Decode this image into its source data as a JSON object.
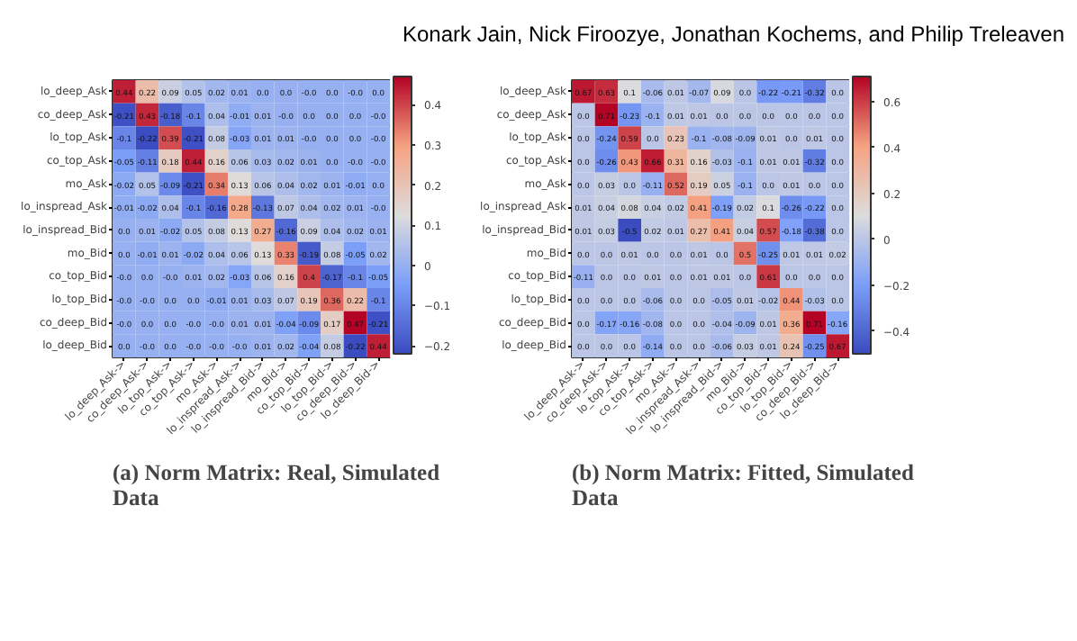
{
  "chart_data": [
    {
      "type": "heatmap",
      "title": "(a) Norm Matrix: Real, Simulated Data",
      "annotations": [
        "Konark Jain, Nick Firoozye, Jonathan Kochems, and Philip Treleaven"
      ],
      "cell_labels": [
        [
          "0.44",
          "0.22",
          "0.09",
          "0.05",
          "0.02",
          "0.01",
          "0.0",
          "0.0",
          "-0.0",
          "0.0",
          "-0.0",
          "0.0"
        ],
        [
          "-0.21",
          "0.43",
          "-0.18",
          "-0.1",
          "0.04",
          "-0.01",
          "0.01",
          "-0.0",
          "0.0",
          "0.0",
          "0.0",
          "-0.0"
        ],
        [
          "-0.1",
          "-0.22",
          "0.39",
          "-0.21",
          "0.08",
          "-0.03",
          "0.01",
          "0.01",
          "-0.0",
          "0.0",
          "0.0",
          "-0.0"
        ],
        [
          "-0.05",
          "-0.11",
          "0.18",
          "0.44",
          "0.16",
          "0.06",
          "0.03",
          "0.02",
          "0.01",
          "0.0",
          "-0.0",
          "-0.0"
        ],
        [
          "-0.02",
          "0.05",
          "-0.09",
          "-0.21",
          "0.34",
          "0.13",
          "0.06",
          "0.04",
          "0.02",
          "0.01",
          "-0.01",
          "0.0"
        ],
        [
          "-0.01",
          "-0.02",
          "0.04",
          "-0.1",
          "-0.16",
          "0.28",
          "-0.13",
          "0.07",
          "0.04",
          "0.02",
          "0.01",
          "-0.0"
        ],
        [
          "0.0",
          "0.01",
          "-0.02",
          "0.05",
          "0.08",
          "0.13",
          "0.27",
          "-0.16",
          "0.09",
          "0.04",
          "0.02",
          "0.01"
        ],
        [
          "0.0",
          "-0.01",
          "0.01",
          "-0.02",
          "0.04",
          "0.06",
          "0.13",
          "0.33",
          "-0.19",
          "0.08",
          "-0.05",
          "0.02"
        ],
        [
          "-0.0",
          "0.0",
          "-0.0",
          "0.01",
          "0.02",
          "-0.03",
          "0.06",
          "0.16",
          "0.4",
          "-0.17",
          "-0.1",
          "-0.05"
        ],
        [
          "-0.0",
          "-0.0",
          "0.0",
          "0.0",
          "-0.01",
          "0.01",
          "0.03",
          "0.07",
          "0.19",
          "0.36",
          "0.22",
          "-0.1"
        ],
        [
          "-0.0",
          "0.0",
          "0.0",
          "-0.0",
          "-0.0",
          "0.01",
          "0.01",
          "-0.04",
          "-0.09",
          "0.17",
          "0.47",
          "-0.21"
        ],
        [
          "0.0",
          "-0.0",
          "0.0",
          "-0.0",
          "-0.0",
          "-0.0",
          "0.01",
          "0.02",
          "-0.04",
          "0.08",
          "-0.22",
          "0.44"
        ]
      ],
      "categories": [
        "lo_deep_Ask->",
        "co_deep_Ask->",
        "lo_top_Ask->",
        "co_top_Ask->",
        "mo_Ask->",
        "lo_inspread_Ask->",
        "lo_inspread_Bid->",
        "mo_Bid->",
        "co_top_Bid->",
        "lo_top_Bid->",
        "co_deep_Bid->",
        "lo_deep_Bid->"
      ],
      "y_categories": [
        "lo_deep_Ask",
        "co_deep_Ask",
        "lo_top_Ask",
        "co_top_Ask",
        "mo_Ask",
        "lo_inspread_Ask",
        "lo_inspread_Bid",
        "mo_Bid",
        "co_top_Bid",
        "lo_top_Bid",
        "co_deep_Bid",
        "lo_deep_Bid"
      ],
      "cells": [
        [
          0.44,
          0.22,
          0.09,
          0.05,
          0.02,
          0.01,
          0.0,
          0.0,
          -0.0,
          0.0,
          -0.0,
          0.0
        ],
        [
          -0.21,
          0.43,
          -0.18,
          -0.1,
          0.04,
          -0.01,
          0.01,
          -0.0,
          0.0,
          0.0,
          0.0,
          -0.0
        ],
        [
          -0.1,
          -0.22,
          0.39,
          -0.21,
          0.08,
          -0.03,
          0.01,
          0.01,
          -0.0,
          0.0,
          0.0,
          -0.0
        ],
        [
          -0.05,
          -0.11,
          0.18,
          0.44,
          0.16,
          0.06,
          0.03,
          0.02,
          0.01,
          0.0,
          -0.0,
          -0.0
        ],
        [
          -0.02,
          0.05,
          -0.09,
          -0.21,
          0.34,
          0.13,
          0.06,
          0.04,
          0.02,
          0.01,
          -0.01,
          0.0
        ],
        [
          -0.01,
          -0.02,
          0.04,
          -0.1,
          -0.16,
          0.28,
          -0.13,
          0.07,
          0.04,
          0.02,
          0.01,
          -0.0
        ],
        [
          0.0,
          0.01,
          -0.02,
          0.05,
          0.08,
          0.13,
          0.27,
          -0.16,
          0.09,
          0.04,
          0.02,
          0.01
        ],
        [
          0.0,
          -0.01,
          0.01,
          -0.02,
          0.04,
          0.06,
          0.13,
          0.33,
          -0.19,
          0.08,
          -0.05,
          0.02
        ],
        [
          -0.0,
          0.0,
          -0.0,
          0.01,
          0.02,
          -0.03,
          0.06,
          0.16,
          0.4,
          -0.17,
          -0.1,
          -0.05
        ],
        [
          -0.0,
          -0.0,
          0.0,
          0.0,
          -0.01,
          0.01,
          0.03,
          0.07,
          0.19,
          0.36,
          0.22,
          -0.1
        ],
        [
          -0.0,
          0.0,
          0.0,
          -0.0,
          -0.0,
          0.01,
          0.01,
          -0.04,
          -0.09,
          0.17,
          0.47,
          -0.21
        ],
        [
          0.0,
          -0.0,
          0.0,
          -0.0,
          -0.0,
          -0.0,
          0.01,
          0.02,
          -0.04,
          0.08,
          -0.22,
          0.44
        ]
      ],
      "clim": [
        -0.22,
        0.47
      ],
      "cticks": [
        {
          "value": -0.2,
          "label": "−0.2"
        },
        {
          "value": -0.1,
          "label": "−0.1"
        },
        0.0,
        0.1,
        0.2,
        0.3,
        0.4
      ]
    },
    {
      "type": "heatmap",
      "title": "(b) Norm Matrix: Fitted, Simulated Data",
      "cell_labels": [
        [
          "0.67",
          "0.63",
          "0.1",
          "-0.06",
          "0.01",
          "-0.07",
          "0.09",
          "0.0",
          "-0.22",
          "-0.21",
          "-0.32",
          "0.0"
        ],
        [
          "0.0",
          "0.71",
          "-0.23",
          "-0.1",
          "0.01",
          "0.01",
          "0.0",
          "0.0",
          "0.0",
          "0.0",
          "0.0",
          "0.0"
        ],
        [
          "0.0",
          "-0.24",
          "0.59",
          "0.0",
          "0.23",
          "-0.1",
          "-0.08",
          "-0.09",
          "0.01",
          "0.0",
          "0.01",
          "0.0"
        ],
        [
          "0.0",
          "-0.26",
          "0.43",
          "0.66",
          "0.31",
          "0.16",
          "-0.03",
          "-0.1",
          "0.01",
          "0.01",
          "-0.32",
          "0.0"
        ],
        [
          "0.0",
          "0.03",
          "0.0",
          "-0.11",
          "0.52",
          "0.19",
          "0.05",
          "-0.1",
          "0.0",
          "0.01",
          "0.0",
          "0.0"
        ],
        [
          "0.01",
          "0.04",
          "0.08",
          "0.04",
          "0.02",
          "0.41",
          "-0.19",
          "0.02",
          "0.1",
          "-0.26",
          "-0.22",
          "0.0"
        ],
        [
          "0.01",
          "0.03",
          "-0.5",
          "0.02",
          "0.01",
          "0.27",
          "0.41",
          "0.04",
          "0.57",
          "-0.18",
          "-0.38",
          "0.0"
        ],
        [
          "0.0",
          "0.0",
          "0.01",
          "0.0",
          "0.0",
          "0.01",
          "0.0",
          "0.5",
          "-0.25",
          "0.01",
          "0.01",
          "0.02"
        ],
        [
          "-0.11",
          "0.0",
          "0.0",
          "0.01",
          "0.0",
          "0.01",
          "0.01",
          "0.0",
          "0.61",
          "0.0",
          "0.0",
          "0.0"
        ],
        [
          "0.0",
          "0.0",
          "0.0",
          "-0.06",
          "0.0",
          "0.0",
          "-0.05",
          "0.01",
          "-0.02",
          "0.44",
          "-0.03",
          "0.0"
        ],
        [
          "0.0",
          "-0.17",
          "-0.16",
          "-0.08",
          "0.0",
          "0.0",
          "-0.04",
          "-0.09",
          "0.01",
          "0.36",
          "0.71",
          "-0.16"
        ],
        [
          "0.0",
          "0.0",
          "0.0",
          "-0.14",
          "0.0",
          "0.0",
          "-0.06",
          "0.03",
          "0.01",
          "0.24",
          "-0.25",
          "0.67"
        ]
      ],
      "categories": [
        "lo_deep_Ask->",
        "co_deep_Ask->",
        "lo_top_Ask->",
        "co_top_Ask->",
        "mo_Ask->",
        "lo_inspread_Ask->",
        "lo_inspread_Bid->",
        "mo_Bid->",
        "co_top_Bid->",
        "lo_top_Bid->",
        "co_deep_Bid->",
        "lo_deep_Bid->"
      ],
      "y_categories": [
        "lo_deep_Ask",
        "co_deep_Ask",
        "lo_top_Ask",
        "co_top_Ask",
        "mo_Ask",
        "lo_inspread_Ask",
        "lo_inspread_Bid",
        "mo_Bid",
        "co_top_Bid",
        "lo_top_Bid",
        "co_deep_Bid",
        "lo_deep_Bid"
      ],
      "cells": [
        [
          0.67,
          0.63,
          0.1,
          -0.06,
          0.01,
          -0.07,
          0.09,
          0.0,
          -0.22,
          -0.21,
          -0.32,
          0.0
        ],
        [
          0.0,
          0.71,
          -0.23,
          -0.1,
          0.01,
          0.01,
          0.0,
          0.0,
          0.0,
          0.0,
          0.0,
          0.0
        ],
        [
          0.0,
          -0.24,
          0.59,
          0.0,
          0.23,
          -0.1,
          -0.08,
          -0.09,
          0.01,
          0.0,
          0.01,
          0.0
        ],
        [
          0.0,
          -0.26,
          0.43,
          0.66,
          0.31,
          0.16,
          -0.03,
          -0.1,
          0.01,
          0.01,
          -0.32,
          0.0
        ],
        [
          0.0,
          0.03,
          0.0,
          -0.11,
          0.52,
          0.19,
          0.05,
          -0.1,
          0.0,
          0.01,
          0.0,
          0.0
        ],
        [
          0.01,
          0.04,
          0.08,
          0.04,
          0.02,
          0.41,
          -0.19,
          0.02,
          0.1,
          -0.26,
          -0.22,
          0.0
        ],
        [
          0.01,
          0.03,
          -0.5,
          0.02,
          0.01,
          0.27,
          0.41,
          0.04,
          0.57,
          -0.18,
          -0.38,
          0.0
        ],
        [
          0.0,
          0.0,
          0.01,
          0.0,
          0.0,
          0.01,
          0.0,
          0.5,
          -0.25,
          0.01,
          0.01,
          0.02
        ],
        [
          -0.11,
          0.0,
          0.0,
          0.01,
          0.0,
          0.01,
          0.01,
          0.0,
          0.61,
          0.0,
          0.0,
          0.0
        ],
        [
          0.0,
          0.0,
          0.0,
          -0.06,
          0.0,
          0.0,
          -0.05,
          0.01,
          -0.02,
          0.44,
          -0.03,
          0.0
        ],
        [
          0.0,
          -0.17,
          -0.16,
          -0.08,
          0.0,
          0.0,
          -0.04,
          -0.09,
          0.01,
          0.36,
          0.71,
          -0.16
        ],
        [
          0.0,
          0.0,
          0.0,
          -0.14,
          0.0,
          0.0,
          -0.06,
          0.03,
          0.01,
          0.24,
          -0.25,
          0.67
        ]
      ],
      "clim": [
        -0.5,
        0.71
      ],
      "cticks": [
        {
          "value": -0.4,
          "label": "−0.4"
        },
        {
          "value": -0.2,
          "label": "−0.2"
        },
        0.0,
        0.2,
        0.4,
        0.6
      ]
    }
  ]
}
